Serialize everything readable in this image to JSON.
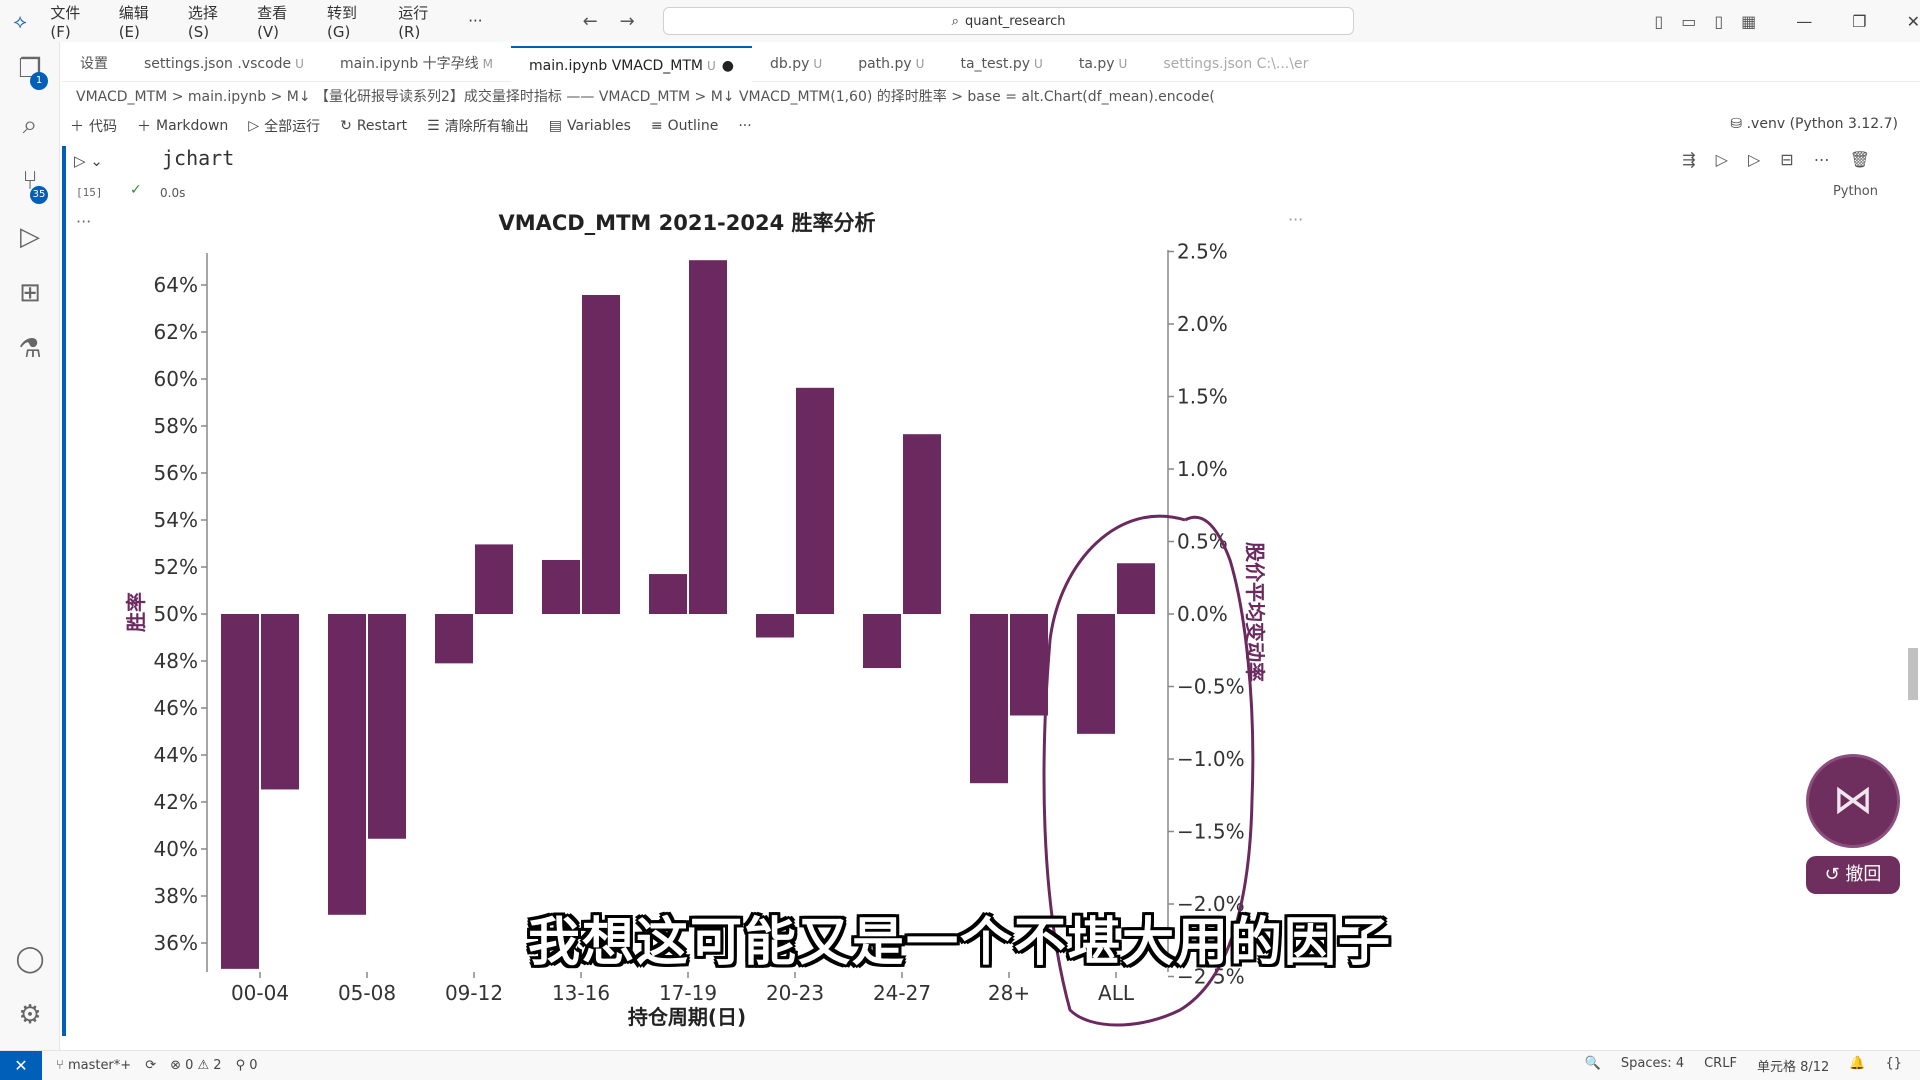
{
  "titlebar": {
    "menus": [
      "文件(F)",
      "编辑(E)",
      "选择(S)",
      "查看(V)",
      "转到(G)",
      "运行(R)",
      "···"
    ],
    "search": "quant_research"
  },
  "activitybar": {
    "explorer_badge": "1",
    "scm_badge": "35"
  },
  "tabs": [
    {
      "label": "设置",
      "status": ""
    },
    {
      "label": "settings.json .vscode",
      "status": "U"
    },
    {
      "label": "main.ipynb 十字孕线",
      "status": "M"
    },
    {
      "label": "main.ipynb VMACD_MTM",
      "status": "U",
      "active": true
    },
    {
      "label": "db.py",
      "status": "U"
    },
    {
      "label": "path.py",
      "status": "U"
    },
    {
      "label": "ta_test.py",
      "status": "U"
    },
    {
      "label": "ta.py",
      "status": "U"
    },
    {
      "label": "settings.json C:\\...\\er",
      "status": ""
    }
  ],
  "breadcrumb": "VMACD_MTM  >  main.ipynb  >  M↓ 【量化研报导读系列2】成交量择时指标 —— VMACD_MTM  >  M↓ VMACD_MTM(1,60) 的择时胜率  >  base = alt.Chart(df_mean).encode(",
  "nb_toolbar": {
    "code": "代码",
    "markdown": "Markdown",
    "run_all": "全部运行",
    "restart": "Restart",
    "clear": "清除所有输出",
    "variables": "Variables",
    "outline": "Outline",
    "more": "···",
    "kernel": ".venv (Python 3.12.7)"
  },
  "cell": {
    "code": "jchart",
    "exec_count": "[15]",
    "exec_time": "0.0s",
    "language": "Python",
    "output_more": "···",
    "chart_more": "···"
  },
  "chart_data": {
    "type": "bar",
    "title": "VMACD_MTM 2021-2024 胜率分析",
    "xlabel": "持仓周期(日)",
    "ylabel_left": "胜率",
    "ylabel_right": "股价平均变动率",
    "categories": [
      "00-04",
      "05-08",
      "09-12",
      "13-16",
      "17-19",
      "20-23",
      "24-27",
      "28+",
      "ALL"
    ],
    "series": [
      {
        "name": "胜率",
        "axis": "left",
        "values": [
          34.9,
          37.2,
          47.9,
          52.3,
          51.7,
          49.0,
          47.7,
          42.8,
          44.9
        ]
      },
      {
        "name": "股价平均变动率",
        "axis": "right",
        "values": [
          -1.21,
          -1.55,
          0.48,
          2.2,
          2.44,
          1.56,
          1.24,
          -0.7,
          0.35
        ]
      }
    ],
    "left_axis": {
      "range": [
        35,
        65
      ],
      "ticks": [
        "36%",
        "38%",
        "40%",
        "42%",
        "44%",
        "46%",
        "48%",
        "50%",
        "52%",
        "54%",
        "56%",
        "58%",
        "60%",
        "62%",
        "64%"
      ]
    },
    "right_axis": {
      "range": [
        -2.5,
        2.5
      ],
      "ticks": [
        "2.5%",
        "2.0%",
        "1.5%",
        "1.0%",
        "0.5%",
        "0.0%",
        "−0.5%",
        "−1.0%",
        "−1.5%",
        "−2.0%",
        "−2.5%"
      ]
    },
    "bar_color": "#6b2a5f",
    "annotation_color": "#6b2a5f"
  },
  "subtitle": "我想这可能又是一个不堪大用的因子",
  "float_widget": {
    "button_label": "撤回"
  },
  "statusbar": {
    "branch": "master*+",
    "problems": "⊗ 0  ⚠ 2",
    "ports": "0",
    "spaces": "Spaces: 4",
    "eol": "CRLF",
    "cell_pos": "单元格 8/12"
  }
}
